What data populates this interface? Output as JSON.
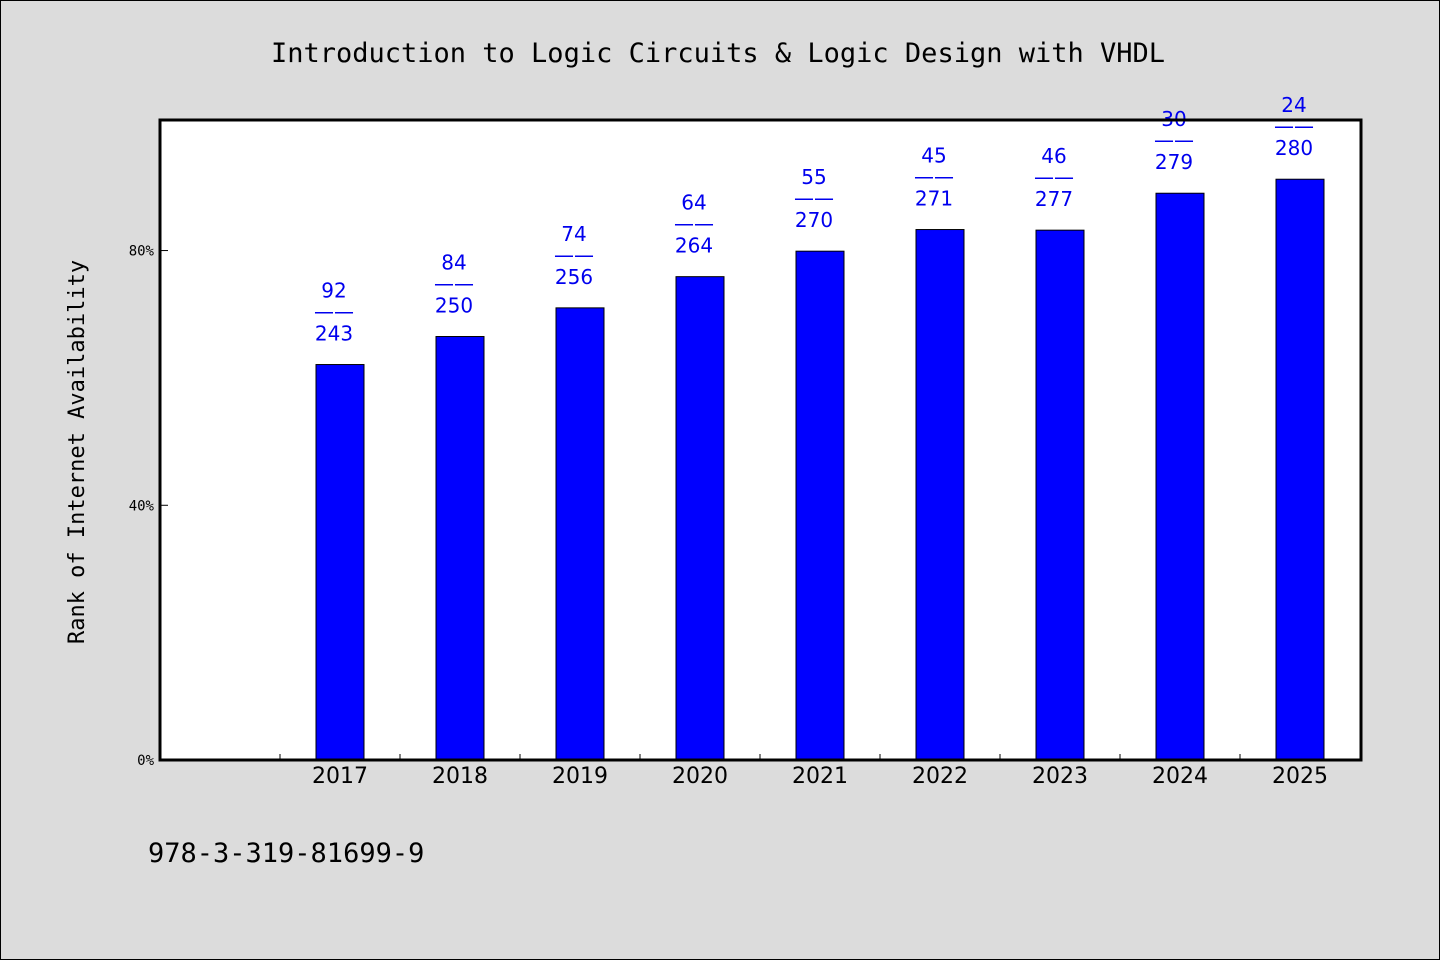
{
  "chart_data": {
    "type": "bar",
    "title": "Introduction to Logic Circuits & Logic Design with VHDL",
    "ylabel": "Rank of Internet Availability",
    "xlabel": "",
    "categories": [
      "2017",
      "2018",
      "2019",
      "2020",
      "2021",
      "2022",
      "2023",
      "2024",
      "2025"
    ],
    "values": [
      62.1,
      66.5,
      71.0,
      75.9,
      79.9,
      83.3,
      83.2,
      89.0,
      91.2
    ],
    "data_labels": [
      {
        "top": "92",
        "sep": "——",
        "bottom": "243"
      },
      {
        "top": "84",
        "sep": "——",
        "bottom": "250"
      },
      {
        "top": "74",
        "sep": "——",
        "bottom": "256"
      },
      {
        "top": "64",
        "sep": "——",
        "bottom": "264"
      },
      {
        "top": "55",
        "sep": "——",
        "bottom": "270"
      },
      {
        "top": "45",
        "sep": "——",
        "bottom": "271"
      },
      {
        "top": "46",
        "sep": "——",
        "bottom": "277"
      },
      {
        "top": "30",
        "sep": "——",
        "bottom": "279"
      },
      {
        "top": "24",
        "sep": "——",
        "bottom": "280"
      }
    ],
    "yticks": [
      {
        "value": 0,
        "label": "0%"
      },
      {
        "value": 40,
        "label": "40%"
      },
      {
        "value": 80,
        "label": "80%"
      }
    ],
    "ylim": [
      0,
      100.5
    ],
    "bar_color": "#0000ff",
    "label_color": "#0000ee",
    "grid": false,
    "legend": "none"
  },
  "footer": {
    "isbn": "978-3-319-81699-9"
  }
}
